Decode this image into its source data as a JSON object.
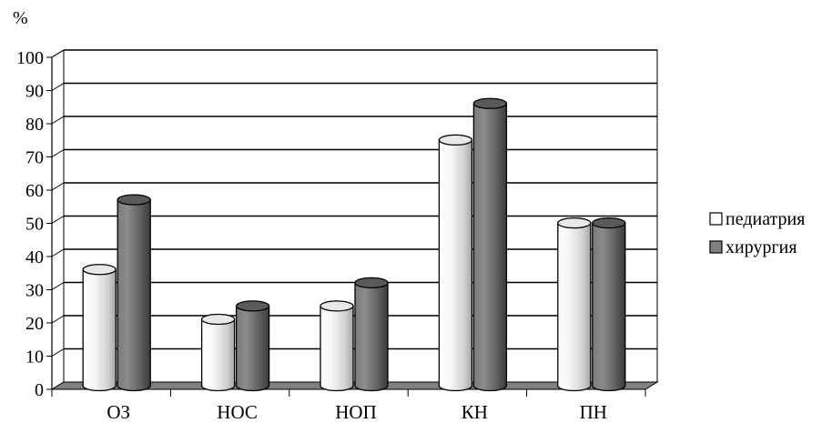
{
  "chart_data": {
    "type": "bar",
    "style": "3d-cylinder",
    "unit_label": "%",
    "categories": [
      "ОЗ",
      "НОС",
      "НОП",
      "КН",
      "ПН"
    ],
    "series": [
      {
        "name": "педиатрия",
        "color": "#f2f2f2",
        "values": [
          35,
          20,
          24,
          74,
          49
        ]
      },
      {
        "name": "хирургия",
        "color": "#6e6e6e",
        "values": [
          56,
          24,
          31,
          85,
          49
        ]
      }
    ],
    "ylim": [
      0,
      100
    ],
    "yticks": [
      0,
      10,
      20,
      30,
      40,
      50,
      60,
      70,
      80,
      90,
      100
    ],
    "grid": true,
    "legend_position": "right"
  }
}
